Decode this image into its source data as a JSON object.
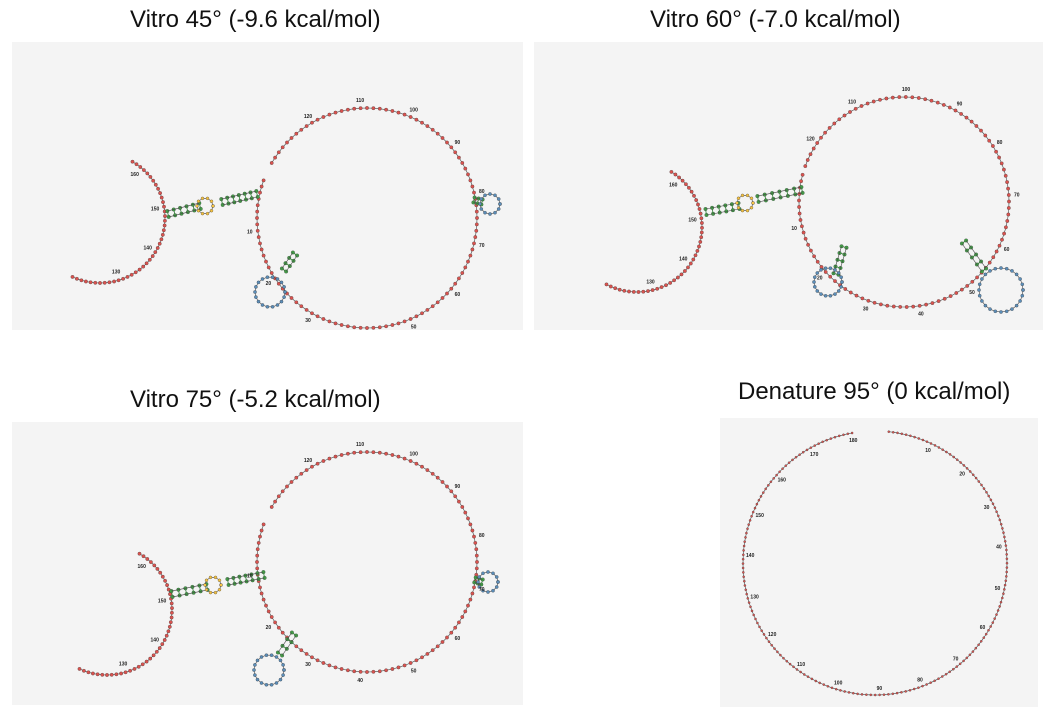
{
  "panels": [
    {
      "id": "p45",
      "title": "Vitro 45° (-9.6 kcal/mol)",
      "labels": [
        "10",
        "20",
        "30",
        "40",
        "50",
        "60",
        "70",
        "80",
        "90",
        "100",
        "110",
        "120",
        "130",
        "140",
        "150",
        "160",
        "170",
        "180"
      ]
    },
    {
      "id": "p60",
      "title": "Vitro 60° (-7.0 kcal/mol)",
      "labels": [
        "10",
        "20",
        "30",
        "40",
        "50",
        "60",
        "70",
        "80",
        "90",
        "100",
        "110",
        "120",
        "130",
        "140",
        "150",
        "160",
        "170",
        "180"
      ]
    },
    {
      "id": "p75",
      "title": "Vitro 75° (-5.2 kcal/mol)",
      "labels": [
        "10",
        "20",
        "30",
        "40",
        "50",
        "60",
        "70",
        "80",
        "90",
        "100",
        "110",
        "120",
        "130",
        "140",
        "150",
        "160",
        "170",
        "180"
      ]
    },
    {
      "id": "p95",
      "title": "Denature 95° (0 kcal/mol)",
      "labels": [
        "10",
        "20",
        "30",
        "40",
        "50",
        "60",
        "70",
        "80",
        "90",
        "100",
        "110",
        "120",
        "130",
        "140",
        "150",
        "160",
        "170",
        "180"
      ]
    }
  ],
  "colors": {
    "loop_base": "#d9534f",
    "hairpin_base": "#5b8db8",
    "stem_base": "#43a047",
    "backbone": "#444444",
    "bond": "#2e7d32",
    "background": "#f4f4f4"
  }
}
